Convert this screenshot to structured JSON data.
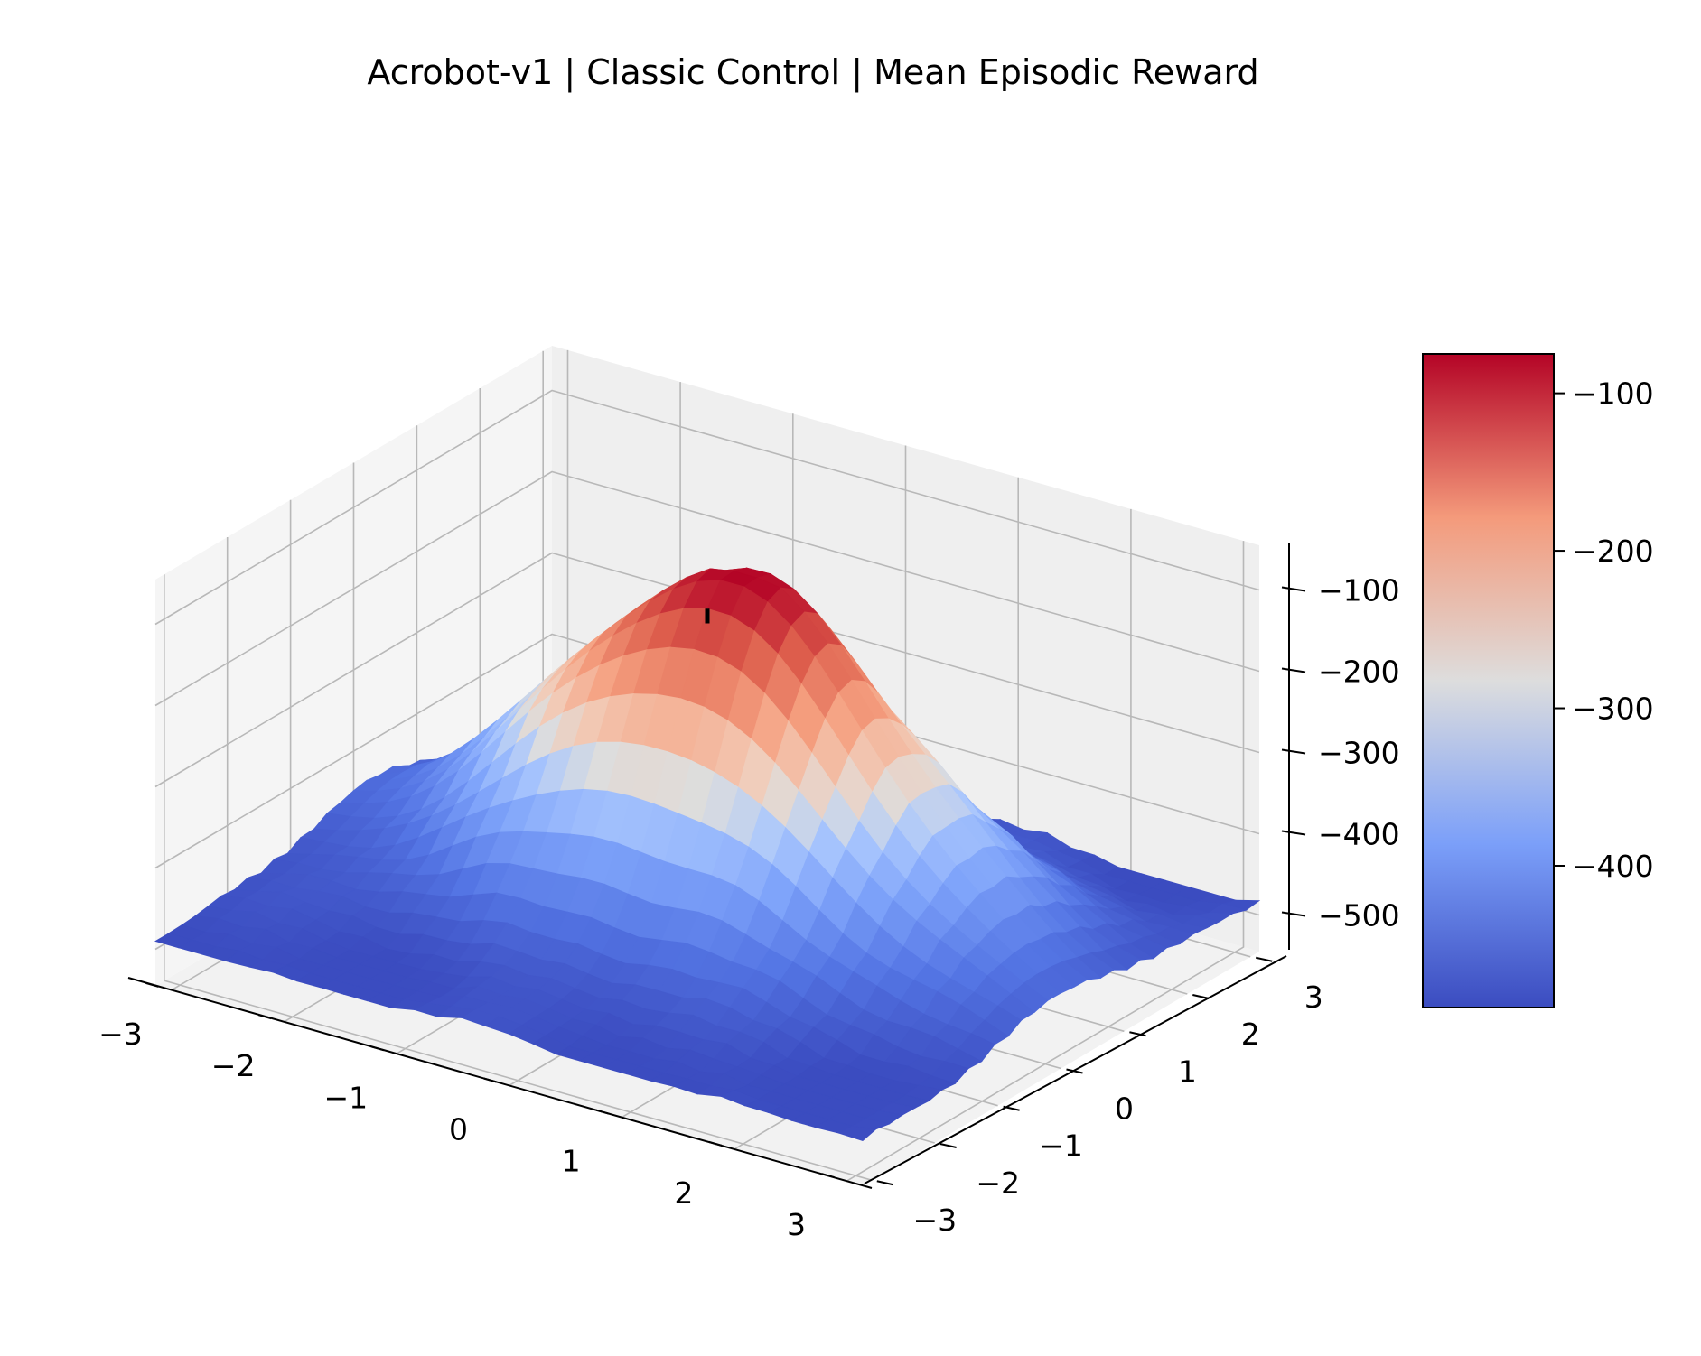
{
  "chart_data": {
    "type": "surface3d",
    "title": "Acrobot-v1 | Classic Control | Mean Episodic Reward",
    "colormap": "coolwarm",
    "x_ticks": [
      "−3",
      "−2",
      "−1",
      "0",
      "1",
      "2",
      "3"
    ],
    "y_ticks": [
      "−3",
      "−2",
      "−1",
      "0",
      "1",
      "2",
      "3"
    ],
    "z_ticks": [
      "−100",
      "−200",
      "−300",
      "−400",
      "−500"
    ],
    "z_tick_values": [
      -100,
      -200,
      -300,
      -400,
      -500
    ],
    "colorbar_ticks": [
      "−100",
      "−200",
      "−300",
      "−400"
    ],
    "colorbar_tick_values": [
      -100,
      -200,
      -300,
      -400
    ],
    "xlim": [
      -3.14,
      3.14
    ],
    "ylim": [
      -3.14,
      3.14
    ],
    "zlim": [
      -545,
      -45
    ],
    "color_range": [
      -490,
      -75
    ],
    "marker": {
      "x": 0,
      "y": 0,
      "z_low": -545,
      "z_high": -120
    },
    "surface_peak": {
      "x": 0,
      "y": 0.4,
      "value": -75
    },
    "surface_floor": -490,
    "grid": true,
    "colors": {
      "pane": "#f3f3f3",
      "grid": "#b8b8b8",
      "low": "#3b4cc0",
      "mid": "#dddddd",
      "high": "#b40426"
    }
  }
}
